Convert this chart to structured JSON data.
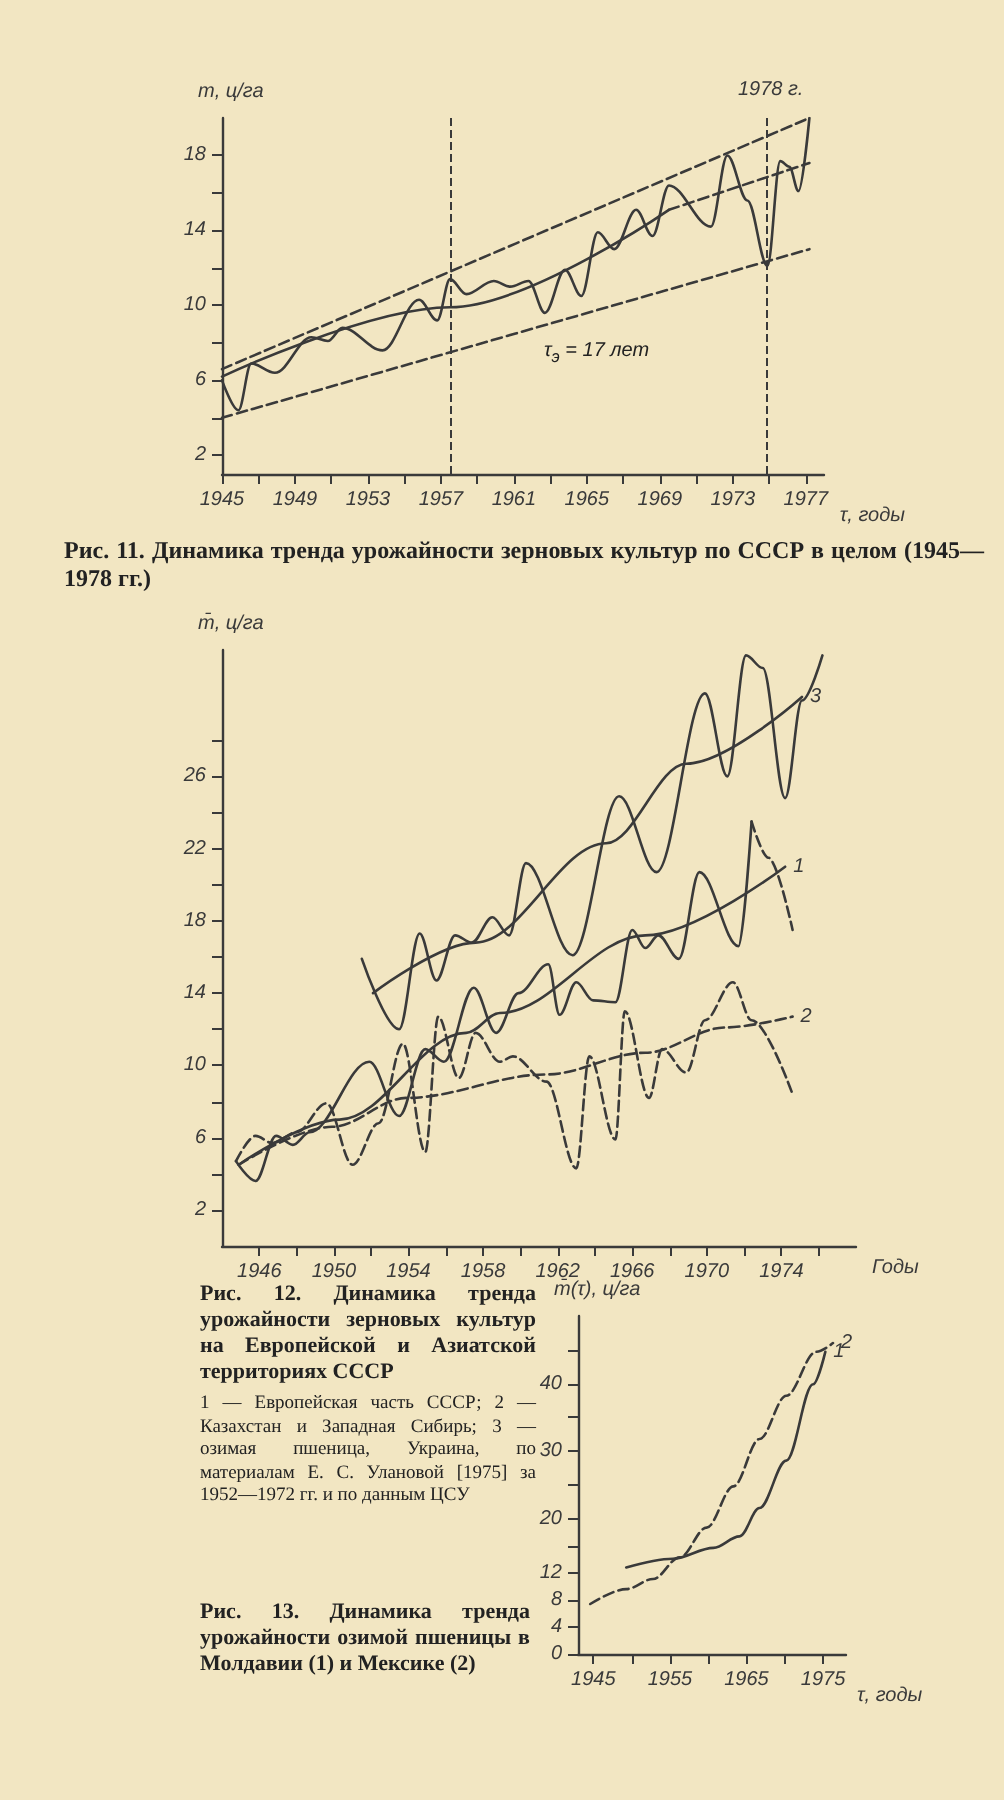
{
  "chart_data": [
    {
      "type": "line",
      "title": "Рис. 11. Динамика тренда урожайности зерновых культур по СССР в целом (1945—1978 гг.)",
      "xlabel": "τ, годы",
      "ylabel": "m, ц/га",
      "marker": "none",
      "xlim": [
        1945,
        1978
      ],
      "xticks": [
        1945,
        {
          "value": 1947,
          "label": null
        },
        1949,
        {
          "value": 1951,
          "label": null
        },
        1953,
        {
          "value": 1955,
          "label": null
        },
        1957,
        {
          "value": 1959,
          "label": null
        },
        1961,
        {
          "value": 1963,
          "label": null
        },
        1965,
        {
          "value": 1967,
          "label": null
        },
        1969,
        {
          "value": 1971,
          "label": null
        },
        1973,
        {
          "value": 1975,
          "label": null
        },
        1977
      ],
      "ylim": [
        1,
        20
      ],
      "yticks": [
        2,
        {
          "value": 4,
          "label": null
        },
        6,
        {
          "value": 8,
          "label": null
        },
        10,
        {
          "value": 12,
          "label": null
        },
        14,
        {
          "value": 16,
          "label": null
        },
        18
      ],
      "series": [
        {
          "color": "#3a3a3a",
          "line_style": "solid",
          "x": [
            1945,
            1945.9,
            1946.6,
            1947.9,
            1949.9,
            1950.8,
            1951.6,
            1953.8,
            1955.8,
            1956.8,
            1957.5,
            1958.4,
            1959.9,
            1960.8,
            1961.8,
            1962.7,
            1963.8,
            1964.7,
            1965.6,
            1966.5,
            1967.7,
            1968.6,
            1969.5,
            1971.8,
            1972.7,
            1973.8,
            1974.9,
            1975.6,
            1976.1,
            1976.6,
            1977.2
          ],
          "values": [
            6.0,
            4.4,
            6.9,
            6.4,
            8.3,
            8.1,
            8.8,
            7.6,
            10.3,
            9.2,
            11.4,
            10.6,
            11.3,
            11.0,
            11.3,
            9.6,
            11.9,
            10.5,
            13.9,
            13.0,
            15.1,
            13.7,
            16.4,
            14.2,
            18.0,
            15.6,
            12.1,
            17.7,
            17.4,
            16.1,
            20.0
          ]
        },
        {
          "color": "#3a3a3a",
          "line_style": "solid",
          "x": [
            1945,
            1957.5,
            1969.5
          ],
          "values": [
            6.2,
            9.9,
            15.1
          ]
        },
        {
          "color": "#3a3a3a",
          "line_style": "dashed",
          "x": [
            1969.5,
            1977.2
          ],
          "values": [
            15.1,
            17.6
          ]
        },
        {
          "color": "#3a3a3a",
          "line_style": "dashed",
          "x": [
            1945,
            1977.2
          ],
          "values": [
            6.6,
            20.0
          ]
        },
        {
          "color": "#3a3a3a",
          "line_style": "dashed",
          "x": [
            1945,
            1977.2
          ],
          "values": [
            4.0,
            13.0
          ]
        }
      ],
      "ref_lines": [
        {
          "axis": "x",
          "value": 1957.5,
          "line_style": "dashed"
        },
        {
          "axis": "x",
          "value": 1974.9,
          "line_style": "dashed"
        }
      ],
      "annotations": [
        {
          "text": "1978 г.",
          "x": 1977.2,
          "y": 20.0
        },
        "τ$_{э}$ = 17 лет"
      ]
    },
    {
      "type": "line",
      "title": "Рис. 12. Динамика тренда урожайности зерновых культур на Европейской и Азиатской территориях СССР",
      "xlabel": "Годы",
      "ylabel": "m̄, ц/га",
      "marker": "none",
      "xlim": [
        1944,
        1978
      ],
      "xticks": [
        1946,
        {
          "value": 1948,
          "label": null
        },
        1950,
        {
          "value": 1952,
          "label": null
        },
        1954,
        {
          "value": 1956,
          "label": null
        },
        1958,
        {
          "value": 1960,
          "label": null
        },
        1962,
        {
          "value": 1964,
          "label": null
        },
        1966,
        {
          "value": 1968,
          "label": null
        },
        1970,
        {
          "value": 1972,
          "label": null
        },
        1974,
        {
          "value": 1976,
          "label": null
        }
      ],
      "ylim": [
        0,
        33
      ],
      "yticks": [
        2,
        {
          "value": 4,
          "label": null
        },
        6,
        {
          "value": 8,
          "label": null
        },
        10,
        {
          "value": 12,
          "label": null
        },
        14,
        {
          "value": 16,
          "label": null
        },
        18,
        {
          "value": 20,
          "label": null
        },
        22,
        {
          "value": 24,
          "label": null
        },
        26,
        {
          "value": 28,
          "label": null
        }
      ],
      "series": [
        {
          "color": "#3a3a3a",
          "line_style": "solid",
          "x": [
            1951.5,
            1953.5,
            1954.6,
            1955.5,
            1956.5,
            1957.4,
            1958.5,
            1959.4,
            1960.3,
            1962.8,
            1965.3,
            1967.3,
            1969.9,
            1971.1,
            1972.1,
            1973.0,
            1974.2,
            1975.1,
            1976.2
          ],
          "values": [
            15.9,
            12.0,
            17.3,
            14.7,
            17.2,
            16.8,
            18.2,
            17.2,
            21.2,
            16.1,
            24.9,
            20.7,
            30.6,
            26.0,
            32.7,
            32.0,
            24.8,
            30.2,
            32.7
          ]
        },
        {
          "name": "3",
          "color": "#3a3a3a",
          "line_style": "solid",
          "x": [
            1952.1,
            1957.6,
            1964.6,
            1968.9,
            1975.1
          ],
          "values": [
            14.0,
            16.8,
            22.3,
            26.7,
            30.4
          ]
        },
        {
          "color": "#3a3a3a",
          "line_style": "solid",
          "x": [
            1944.75,
            1945.8,
            1946.9,
            1947.8,
            1948.7,
            1951.9,
            1953.5,
            1954.9,
            1955.9,
            1957.5,
            1958.7,
            1959.9,
            1961.5,
            1962.1,
            1963.0,
            1963.9,
            1965.1,
            1966.0,
            1966.7,
            1967.4,
            1968.5,
            1969.6,
            1971.7,
            1972.4
          ],
          "values": [
            4.7,
            3.6,
            6.1,
            5.6,
            6.3,
            10.2,
            7.2,
            10.9,
            10.2,
            14.3,
            11.8,
            14.0,
            15.6,
            12.8,
            14.6,
            13.6,
            13.5,
            17.5,
            16.5,
            17.2,
            15.9,
            20.7,
            16.6,
            23.5
          ]
        },
        {
          "color": "#3a3a3a",
          "line_style": "dashed",
          "x": [
            1972.4,
            1973.3,
            1974.6
          ],
          "values": [
            23.5,
            21.5,
            17.5
          ]
        },
        {
          "name": "1",
          "color": "#3a3a3a",
          "line_style": "solid",
          "x": [
            1944.9,
            1950.3,
            1957.1,
            1958.9,
            1966.7,
            1974.2
          ],
          "values": [
            4.5,
            7.0,
            11.8,
            12.9,
            17.2,
            21.0
          ]
        },
        {
          "color": "#3a3a3a",
          "line_style": "dashed",
          "x": [
            1944.75,
            1945.8,
            1946.7,
            1948.0,
            1949.6,
            1951.0,
            1952.4,
            1953.7,
            1954.9,
            1955.6,
            1956.7,
            1957.6,
            1958.9,
            1959.6,
            1961.4,
            1963.0,
            1963.7,
            1965.1,
            1965.6,
            1966.9,
            1967.6,
            1968.9,
            1969.9,
            1971.4,
            1972.4,
            1974.6
          ],
          "values": [
            4.7,
            6.1,
            5.7,
            6.3,
            7.9,
            4.5,
            6.8,
            11.2,
            5.2,
            12.7,
            9.3,
            11.8,
            10.2,
            10.5,
            9.1,
            4.3,
            10.5,
            5.9,
            13.0,
            8.2,
            10.9,
            9.6,
            12.5,
            14.6,
            12.5,
            8.4
          ]
        },
        {
          "name": "2",
          "color": "#3a3a3a",
          "line_style": "dashed",
          "x": [
            1944.9,
            1949.9,
            1953.9,
            1961.4,
            1966.7,
            1971.0,
            1974.6
          ],
          "values": [
            4.5,
            6.6,
            8.2,
            9.5,
            10.7,
            12.1,
            12.7
          ]
        }
      ],
      "annotations": [
        "1 — Европейская часть СССР; 2 — Казахстан и Западная Сибирь; 3 — озимая пшеница, Украина, по материалам Е. С. Улановой [1975] за 1952—1972 гг. и по данным ЦСУ"
      ]
    },
    {
      "type": "line",
      "title": "Рис. 13. Динамика тренда урожайности озимой пшеницы в Молдавии (1) и Мексике (2)",
      "xlabel": "τ, годы",
      "ylabel": "m̄(τ), ц/га",
      "marker": "none",
      "xlim": [
        1943,
        1978
      ],
      "xticks": [
        1945,
        {
          "value": 1950,
          "label": null
        },
        1955,
        {
          "value": 1960,
          "label": null
        },
        1965,
        {
          "value": 1970,
          "label": null
        },
        1975
      ],
      "ylim": [
        0,
        50
      ],
      "yticks": [
        0,
        4,
        8,
        12,
        {
          "value": 16,
          "label": null
        },
        20,
        {
          "value": 25,
          "label": null
        },
        30,
        {
          "value": 35,
          "label": null
        },
        40,
        {
          "value": 45,
          "label": null
        }
      ],
      "series": [
        {
          "name": "1",
          "color": "#3a3a3a",
          "line_style": "solid",
          "x": [
            1949.3,
            1955.4,
            1960.7,
            1964.1,
            1966.7,
            1970.2,
            1973.7,
            1975.3
          ],
          "values": [
            12.8,
            14.1,
            15.7,
            17.4,
            21.6,
            28.6,
            39.9,
            44.7
          ]
        },
        {
          "name": "2",
          "color": "#3a3a3a",
          "line_style": "dashed",
          "x": [
            1944.6,
            1949.3,
            1952.8,
            1956.3,
            1959.8,
            1963.3,
            1966.7,
            1970.2,
            1974.1,
            1976.3
          ],
          "values": [
            7.4,
            9.6,
            11.1,
            14.3,
            18.7,
            24.8,
            31.8,
            38.2,
            44.7,
            46.0
          ]
        }
      ]
    }
  ]
}
